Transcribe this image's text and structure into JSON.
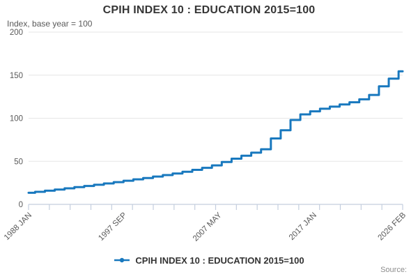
{
  "header": {
    "title": "CPIH INDEX 10 : EDUCATION 2015=100",
    "subtitle": "Index, base year = 100"
  },
  "legend": {
    "label": "CPIH INDEX 10 : EDUCATION 2015=100"
  },
  "source": {
    "label": "Source:"
  },
  "colors": {
    "line": "#1878be",
    "grid": "#e6e6e6",
    "axis": "#c4cede",
    "tick_text": "#595959",
    "title_text": "#363636"
  },
  "chart_data": {
    "type": "line",
    "style": "step-after",
    "title": "CPIH INDEX 10 : EDUCATION 2015=100",
    "ylabel": "Index, base year = 100",
    "ylim": [
      0,
      200
    ],
    "yticks": [
      0,
      50,
      100,
      150,
      200
    ],
    "x_start": "1988-01",
    "x_end": "2026-02",
    "minor_tick_count": 19,
    "grid": "horizontal-only",
    "legend_position": "bottom-center",
    "xticks": [
      {
        "label": "1988 JAN",
        "date": "1988-01"
      },
      {
        "label": "1997 SEP",
        "date": "1997-09"
      },
      {
        "label": "2007 MAY",
        "date": "2007-05"
      },
      {
        "label": "2017 JAN",
        "date": "2017-01"
      },
      {
        "label": "2026 FEB",
        "date": "2026-02"
      }
    ],
    "points": [
      [
        "1988-01",
        13.5
      ],
      [
        "1988-09",
        14.6
      ],
      [
        "1989-09",
        15.9
      ],
      [
        "1990-09",
        17.2
      ],
      [
        "1991-09",
        18.6
      ],
      [
        "1992-09",
        20.0
      ],
      [
        "1993-09",
        21.4
      ],
      [
        "1994-09",
        22.8
      ],
      [
        "1995-09",
        24.3
      ],
      [
        "1996-09",
        25.8
      ],
      [
        "1997-09",
        27.4
      ],
      [
        "1998-09",
        29.0
      ],
      [
        "1999-09",
        30.6
      ],
      [
        "2000-09",
        32.3
      ],
      [
        "2001-09",
        34.0
      ],
      [
        "2002-09",
        35.8
      ],
      [
        "2003-09",
        37.9
      ],
      [
        "2004-09",
        40.1
      ],
      [
        "2005-09",
        42.4
      ],
      [
        "2006-09",
        45.2
      ],
      [
        "2007-09",
        49.2
      ],
      [
        "2008-09",
        53.0
      ],
      [
        "2009-09",
        56.5
      ],
      [
        "2010-09",
        60.0
      ],
      [
        "2011-09",
        64.0
      ],
      [
        "2012-09",
        76.5
      ],
      [
        "2013-09",
        86.0
      ],
      [
        "2014-09",
        98.0
      ],
      [
        "2015-09",
        104.5
      ],
      [
        "2016-09",
        108.0
      ],
      [
        "2017-09",
        111.0
      ],
      [
        "2018-09",
        113.5
      ],
      [
        "2019-09",
        116.0
      ],
      [
        "2020-09",
        118.5
      ],
      [
        "2021-09",
        122.0
      ],
      [
        "2022-09",
        127.0
      ],
      [
        "2023-09",
        137.0
      ],
      [
        "2024-09",
        146.0
      ],
      [
        "2025-09",
        154.5
      ],
      [
        "2026-02",
        154.5
      ]
    ]
  }
}
